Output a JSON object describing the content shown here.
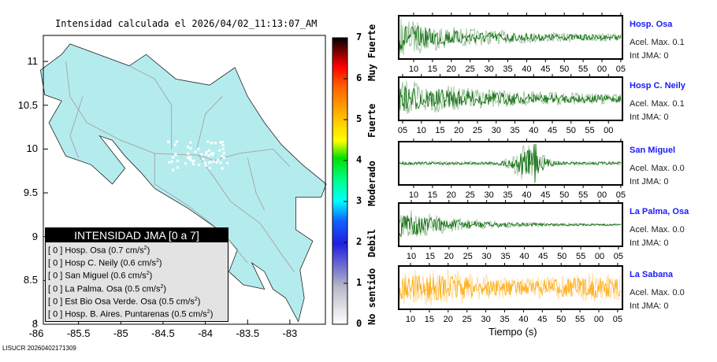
{
  "title": "Intensidad calculada el 2026/04/02_11:13:07_AM",
  "map": {
    "y_ticks": [
      "11",
      "10.5",
      "10",
      "9.5",
      "9",
      "8.5",
      "8"
    ],
    "x_ticks": [
      "-86",
      "-85.5",
      "-85",
      "-84.5",
      "-84",
      "-83.5",
      "-83"
    ],
    "land_color": "#b4ecee"
  },
  "legend": {
    "header": "INTENSIDAD JMA [0 a 7]",
    "items": [
      {
        "int": "[ 0 ]",
        "name": "Hosp. Osa",
        "val": "(0.7 cm/s",
        "unit_sup": "2",
        ")": ")"
      },
      {
        "int": "[ 0 ]",
        "name": "Hosp C. Neily",
        "val": "(0.6 cm/s",
        "unit_sup": "2",
        ")": ")"
      },
      {
        "int": "[ 0 ]",
        "name": "San Miguel",
        "val": "(0.6 cm/s",
        "unit_sup": "2",
        ")": ")"
      },
      {
        "int": "[ 0 ]",
        "name": "La Palma. Osa",
        "val": "(0.5 cm/s",
        "unit_sup": "2",
        ")": ")"
      },
      {
        "int": "[ 0 ]",
        "name": "Est Bio Osa Verde. Osa",
        "val": "(0.5 cm/s",
        "unit_sup": "2",
        ")": ")"
      },
      {
        "int": "[ 0 ]",
        "name": "Hosp. B. Aires. Puntarenas",
        "val": "(0.5 cm/s",
        "unit_sup": "2",
        ")": ")"
      }
    ]
  },
  "colorbar": {
    "ticks": [
      "0",
      "1",
      "2",
      "3",
      "4",
      "5",
      "6",
      "7"
    ],
    "words": [
      "No sentido",
      "Debil",
      "Moderado",
      "Fuerte",
      "Muy Fuerte"
    ]
  },
  "stations": [
    {
      "name": "Hosp. Osa",
      "acel": "Acel. Max. 0.1",
      "int": "Int JMA: 0",
      "color": "#006400",
      "ticks": [
        "10",
        "15",
        "20",
        "25",
        "30",
        "35",
        "40",
        "45",
        "50",
        "55",
        "00",
        "05"
      ]
    },
    {
      "name": "Hosp C. Neily",
      "acel": "Acel. Max. 0.1",
      "int": "Int JMA: 0",
      "color": "#006400",
      "ticks": [
        "05",
        "10",
        "15",
        "20",
        "25",
        "30",
        "35",
        "40",
        "45",
        "50",
        "55",
        "00"
      ]
    },
    {
      "name": "San Miguel",
      "acel": "Acel. Max. 0.0",
      "int": "Int JMA: 0",
      "color": "#006400",
      "ticks": [
        "10",
        "15",
        "20",
        "25",
        "30",
        "35",
        "40",
        "45",
        "50",
        "55",
        "00",
        "05"
      ]
    },
    {
      "name": "La Palma, Osa",
      "acel": "Acel. Max. 0.0",
      "int": "Int JMA: 0",
      "color": "#006400",
      "ticks": [
        "10",
        "15",
        "20",
        "25",
        "30",
        "35",
        "40",
        "45",
        "50",
        "55",
        "00",
        "05"
      ]
    },
    {
      "name": "La Sabana",
      "acel": "Acel. Max. 0.0",
      "int": "Int JMA: 0",
      "color": "#ffa500",
      "ticks": [
        "10",
        "15",
        "20",
        "25",
        "30",
        "35",
        "40",
        "45",
        "50",
        "55",
        "00",
        "05"
      ]
    }
  ],
  "xlabel": "Tiempo (s)",
  "footer": "LISUCR 20260402171309"
}
